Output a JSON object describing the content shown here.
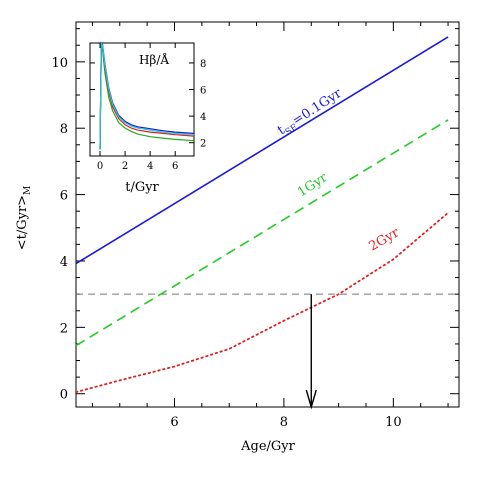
{
  "chart_data": {
    "type": "line",
    "xlabel": "Age/Gyr",
    "ylabel": "<t/Gyr>",
    "ylabel_sub": "M",
    "xlim": [
      4.2,
      11.2
    ],
    "ylim": [
      -0.4,
      11.2
    ],
    "x_ticks": [
      6,
      8,
      10
    ],
    "y_ticks": [
      0,
      2,
      4,
      6,
      8,
      10
    ],
    "reference_line": {
      "y": 3.0,
      "style": "dashed",
      "color": "#777777"
    },
    "arrow": {
      "x": 8.5,
      "y_from": 3.0,
      "y_to": -0.4,
      "color": "#000000"
    },
    "series": [
      {
        "name": "t",
        "name_sub": "SF",
        "name_suffix": "=0.1Gyr",
        "color": "#1a1adb",
        "style": "solid",
        "x": [
          4.2,
          11.0
        ],
        "y": [
          3.92,
          10.75
        ]
      },
      {
        "name": "1Gyr",
        "color": "#22cc22",
        "style": "dashed",
        "x": [
          4.2,
          11.0
        ],
        "y": [
          1.45,
          8.25
        ]
      },
      {
        "name": "2Gyr",
        "color": "#e02020",
        "style": "dotted",
        "x": [
          4.2,
          5.0,
          6.0,
          7.0,
          8.0,
          9.0,
          10.0,
          11.0
        ],
        "y": [
          0.05,
          0.4,
          0.82,
          1.35,
          2.2,
          3.0,
          4.05,
          5.45
        ]
      }
    ],
    "inset": {
      "type": "line",
      "title": "Hβ/Å",
      "xlabel": "t/Gyr",
      "xlim": [
        -0.8,
        7.5
      ],
      "ylim": [
        1.0,
        9.5
      ],
      "x_ticks": [
        0,
        2,
        4,
        6
      ],
      "y_ticks": [
        2,
        4,
        6,
        8
      ],
      "series": [
        {
          "color": "#22aa22",
          "x": [
            0.0,
            0.1,
            0.2,
            0.4,
            0.7,
            1.0,
            1.5,
            2.0,
            2.5,
            3.0,
            4.0,
            5.0,
            6.0,
            7.5
          ],
          "y": [
            1.5,
            9.3,
            9.0,
            7.2,
            5.4,
            4.4,
            3.5,
            3.1,
            2.85,
            2.65,
            2.45,
            2.35,
            2.25,
            2.15
          ]
        },
        {
          "color": "#e02020",
          "x": [
            0.0,
            0.1,
            0.2,
            0.4,
            0.7,
            1.0,
            1.5,
            2.0,
            2.5,
            3.0,
            4.0,
            5.0,
            6.0,
            7.5
          ],
          "y": [
            1.5,
            9.4,
            9.2,
            7.6,
            5.8,
            4.7,
            3.8,
            3.35,
            3.1,
            2.95,
            2.8,
            2.7,
            2.6,
            2.5
          ]
        },
        {
          "color": "#1a1adb",
          "x": [
            0.0,
            0.1,
            0.2,
            0.4,
            0.7,
            1.0,
            1.5,
            2.0,
            2.5,
            3.0,
            4.0,
            5.0,
            6.0,
            7.5
          ],
          "y": [
            1.5,
            9.5,
            9.4,
            7.9,
            6.1,
            5.0,
            4.05,
            3.6,
            3.35,
            3.2,
            3.05,
            2.9,
            2.8,
            2.7
          ]
        },
        {
          "color": "#22cccc",
          "x": [
            0.0,
            0.1,
            0.2,
            0.4,
            0.7,
            1.0,
            1.5,
            2.0,
            2.5,
            3.0,
            4.0,
            5.0,
            6.0,
            7.5
          ],
          "y": [
            1.5,
            9.5,
            9.3,
            7.8,
            6.0,
            4.9,
            3.95,
            3.5,
            3.25,
            3.1,
            2.95,
            2.8,
            2.7,
            2.6
          ]
        }
      ]
    }
  }
}
